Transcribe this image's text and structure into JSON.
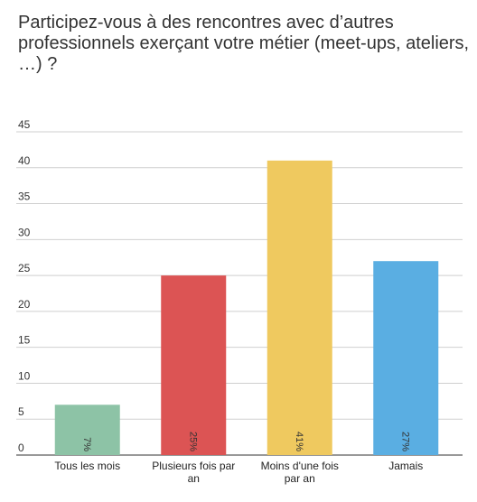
{
  "chart_data": {
    "type": "bar",
    "title": "Participez-vous à des rencontres avec d’autres professionnels exerçant votre métier (meet-ups, ateliers, …) ?",
    "categories": [
      [
        "Tous les mois"
      ],
      [
        "Plusieurs fois par",
        "an"
      ],
      [
        "Moins d'une fois",
        "par an"
      ],
      [
        "Jamais"
      ]
    ],
    "values": [
      7,
      25,
      41,
      27
    ],
    "data_labels": [
      "7%",
      "25%",
      "41%",
      "27%"
    ],
    "colors": [
      "#8dc3a6",
      "#dc5454",
      "#efc95f",
      "#5aaee2"
    ],
    "ylim": [
      0,
      45
    ],
    "yticks": [
      0,
      5,
      10,
      15,
      20,
      25,
      30,
      35,
      40,
      45
    ],
    "grid": true,
    "legend": false,
    "xlabel": "",
    "ylabel": ""
  }
}
